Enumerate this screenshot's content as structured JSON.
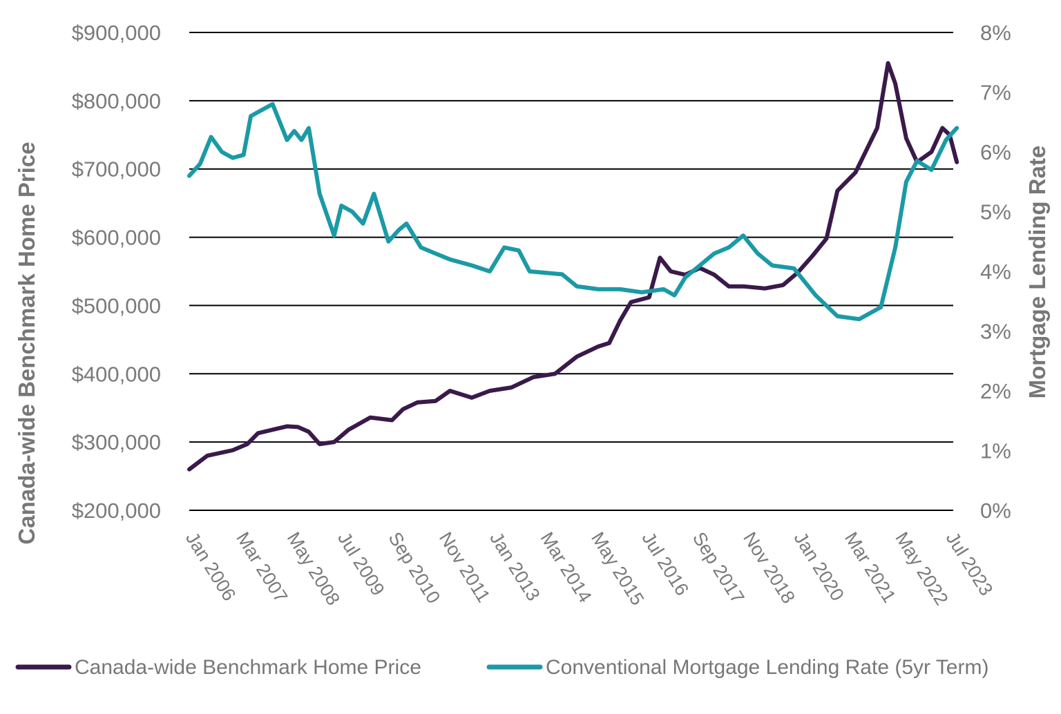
{
  "chart_data": {
    "type": "line",
    "xlabel": "",
    "y_left_label": "Canada-wide Benchmark Home Price",
    "y_right_label": "Mortgage Lending Rate",
    "y_left_range": [
      200000,
      900000
    ],
    "y_right_range": [
      0,
      8
    ],
    "y_left_ticks": [
      "$200,000",
      "$300,000",
      "$400,000",
      "$500,000",
      "$600,000",
      "$700,000",
      "$800,000",
      "$900,000"
    ],
    "y_right_ticks": [
      "0%",
      "1%",
      "2%",
      "3%",
      "4%",
      "5%",
      "6%",
      "7%",
      "8%"
    ],
    "x_range": [
      "Jan 2006",
      "Aug 2023"
    ],
    "x_ticks": [
      "Jan 2006",
      "Mar 2007",
      "May 2008",
      "Jul 2009",
      "Sep 2010",
      "Nov 2011",
      "Jan 2013",
      "Mar 2014",
      "May 2015",
      "Jul 2016",
      "Sep 2017",
      "Nov 2018",
      "Jan 2020",
      "Mar 2021",
      "May 2022",
      "Jul 2023"
    ],
    "grid": true,
    "legend_position": "bottom",
    "series": [
      {
        "name": "Canada-wide Benchmark Home Price",
        "axis": "left",
        "color": "#3a1a4a",
        "points": [
          [
            "Jan 2006",
            260000
          ],
          [
            "Jun 2006",
            280000
          ],
          [
            "Jan 2007",
            288000
          ],
          [
            "May 2007",
            297000
          ],
          [
            "Aug 2007",
            313000
          ],
          [
            "Dec 2007",
            318000
          ],
          [
            "Apr 2008",
            323000
          ],
          [
            "Jul 2008",
            322000
          ],
          [
            "Oct 2008",
            315000
          ],
          [
            "Jan 2009",
            297000
          ],
          [
            "May 2009",
            300000
          ],
          [
            "Sep 2009",
            318000
          ],
          [
            "Mar 2010",
            336000
          ],
          [
            "Sep 2010",
            332000
          ],
          [
            "Dec 2010",
            348000
          ],
          [
            "Apr 2011",
            358000
          ],
          [
            "Sep 2011",
            360000
          ],
          [
            "Jan 2012",
            375000
          ],
          [
            "Jul 2012",
            365000
          ],
          [
            "Dec 2012",
            375000
          ],
          [
            "Jun 2013",
            380000
          ],
          [
            "Dec 2013",
            395000
          ],
          [
            "Jun 2014",
            400000
          ],
          [
            "Dec 2014",
            425000
          ],
          [
            "Jun 2015",
            440000
          ],
          [
            "Sep 2015",
            445000
          ],
          [
            "Dec 2015",
            478000
          ],
          [
            "Mar 2016",
            505000
          ],
          [
            "Aug 2016",
            512000
          ],
          [
            "Nov 2016",
            570000
          ],
          [
            "Feb 2017",
            550000
          ],
          [
            "Jun 2017",
            545000
          ],
          [
            "Oct 2017",
            555000
          ],
          [
            "Feb 2018",
            545000
          ],
          [
            "Jun 2018",
            528000
          ],
          [
            "Oct 2018",
            528000
          ],
          [
            "Apr 2019",
            525000
          ],
          [
            "Sep 2019",
            530000
          ],
          [
            "Jan 2020",
            548000
          ],
          [
            "May 2020",
            572000
          ],
          [
            "Sep 2020",
            598000
          ],
          [
            "Dec 2020",
            668000
          ],
          [
            "May 2021",
            695000
          ],
          [
            "Nov 2021",
            760000
          ],
          [
            "Feb 2022",
            855000
          ],
          [
            "Apr 2022",
            825000
          ],
          [
            "Jul 2022",
            745000
          ],
          [
            "Oct 2022",
            710000
          ],
          [
            "Feb 2023",
            725000
          ],
          [
            "May 2023",
            760000
          ],
          [
            "Jul 2023",
            750000
          ],
          [
            "Sep 2023",
            710000
          ]
        ]
      },
      {
        "name": "Conventional Mortgage Lending Rate (5yr Term)",
        "axis": "right",
        "color": "#1b9aa6",
        "points": [
          [
            "Jan 2006",
            5.6
          ],
          [
            "Apr 2006",
            5.8
          ],
          [
            "Jul 2006",
            6.25
          ],
          [
            "Oct 2006",
            6.0
          ],
          [
            "Jan 2007",
            5.9
          ],
          [
            "Apr 2007",
            5.95
          ],
          [
            "Jun 2007",
            6.6
          ],
          [
            "Sep 2007",
            6.7
          ],
          [
            "Dec 2007",
            6.8
          ],
          [
            "Apr 2008",
            6.2
          ],
          [
            "Jun 2008",
            6.35
          ],
          [
            "Aug 2008",
            6.2
          ],
          [
            "Oct 2008",
            6.4
          ],
          [
            "Jan 2009",
            5.3
          ],
          [
            "May 2009",
            4.6
          ],
          [
            "Jul 2009",
            5.1
          ],
          [
            "Oct 2009",
            5.0
          ],
          [
            "Jan 2010",
            4.8
          ],
          [
            "Apr 2010",
            5.3
          ],
          [
            "Aug 2010",
            4.5
          ],
          [
            "Nov 2010",
            4.7
          ],
          [
            "Jan 2011",
            4.8
          ],
          [
            "May 2011",
            4.4
          ],
          [
            "Sep 2011",
            4.3
          ],
          [
            "Jan 2012",
            4.2
          ],
          [
            "Jul 2012",
            4.1
          ],
          [
            "Dec 2012",
            4.0
          ],
          [
            "Apr 2013",
            4.4
          ],
          [
            "Aug 2013",
            4.35
          ],
          [
            "Nov 2013",
            4.0
          ],
          [
            "Aug 2014",
            3.95
          ],
          [
            "Dec 2014",
            3.75
          ],
          [
            "Jun 2015",
            3.7
          ],
          [
            "Dec 2015",
            3.7
          ],
          [
            "Jun 2016",
            3.65
          ],
          [
            "Dec 2016",
            3.7
          ],
          [
            "Mar 2017",
            3.6
          ],
          [
            "Jun 2017",
            3.9
          ],
          [
            "Oct 2017",
            4.1
          ],
          [
            "Feb 2018",
            4.3
          ],
          [
            "Jun 2018",
            4.4
          ],
          [
            "Oct 2018",
            4.6
          ],
          [
            "Feb 2019",
            4.3
          ],
          [
            "Jun 2019",
            4.1
          ],
          [
            "Dec 2019",
            4.05
          ],
          [
            "Jun 2020",
            3.6
          ],
          [
            "Dec 2020",
            3.25
          ],
          [
            "Jun 2021",
            3.2
          ],
          [
            "Dec 2021",
            3.4
          ],
          [
            "Apr 2022",
            4.4
          ],
          [
            "Jul 2022",
            5.5
          ],
          [
            "Oct 2022",
            5.85
          ],
          [
            "Feb 2023",
            5.7
          ],
          [
            "Jun 2023",
            6.2
          ],
          [
            "Sep 2023",
            6.4
          ]
        ]
      }
    ]
  }
}
